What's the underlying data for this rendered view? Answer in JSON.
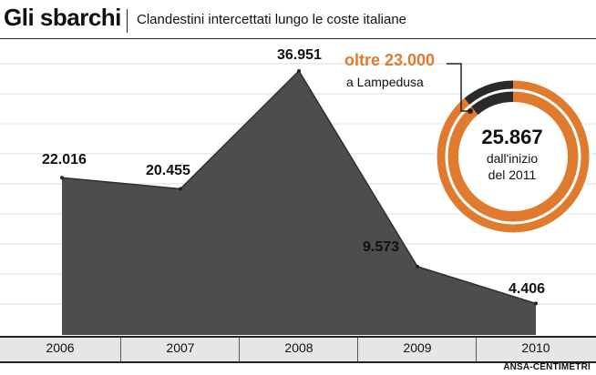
{
  "title": "Gli sbarchi",
  "subtitle": "Clandestini intercettati lungo le coste italiane",
  "source": "ANSA-CENTIMETRI",
  "colors": {
    "accent": "#e07a2e",
    "dark": "#2a2a2a",
    "photo": "#4d4d4d"
  },
  "chart_data": [
    {
      "type": "area",
      "categories": [
        "2006",
        "2007",
        "2008",
        "2009",
        "2010"
      ],
      "series": [
        {
          "values": [
            22016,
            20455,
            36951,
            9573,
            4406
          ]
        }
      ],
      "value_labels": [
        "22.016",
        "20.455",
        "36.951",
        "9.573",
        "4.406"
      ],
      "grid": true
    },
    {
      "type": "pie",
      "slices": [
        {
          "label": "oltre 23.000",
          "value": 23000,
          "color": "#e07a2e"
        },
        {
          "label": "",
          "value": 2867,
          "color": "#2a2a2a"
        }
      ],
      "callout": {
        "text": "oltre 23.000",
        "subtext": "a Lampedusa"
      },
      "center": {
        "total": "25.867",
        "line1": "dall'inizio",
        "line2": "del 2011"
      }
    }
  ]
}
